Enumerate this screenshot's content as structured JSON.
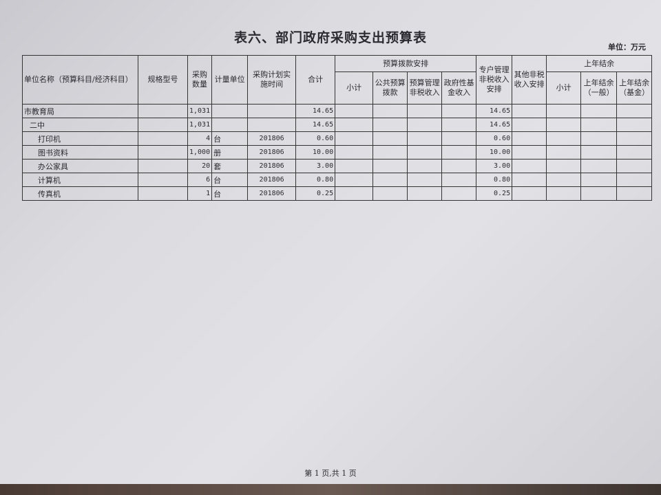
{
  "title": "表六、部门政府采购支出预算表",
  "unit": "单位：万元",
  "headers": {
    "name": "单位名称（预算科目/经济科目）",
    "spec": "规格型号",
    "qty": "采购数量",
    "unit": "计量单位",
    "time": "采购计划实施时间",
    "total": "合计",
    "budget_group": "预算拨款安排",
    "b_sub": "小计",
    "b_public": "公共预算拨款",
    "b_mgmt": "预算管理非税收入",
    "b_fund": "政府性基金收入",
    "special": "专户管理非税收入安排",
    "other": "其他非税收入安排",
    "prev_group": "上年结余",
    "p_sub": "小计",
    "p_general": "上年结余（一般）",
    "p_fund": "上年结余（基金）"
  },
  "rows": [
    {
      "name": "市教育局",
      "qty": "1,031",
      "unit": "",
      "time": "",
      "total": "14.65",
      "special": "14.65",
      "level": 0
    },
    {
      "name": "二中",
      "qty": "1,031",
      "unit": "",
      "time": "",
      "total": "14.65",
      "special": "14.65",
      "level": 1
    },
    {
      "name": "打印机",
      "qty": "4",
      "unit": "台",
      "time": "201806",
      "total": "0.60",
      "special": "0.60",
      "level": 2
    },
    {
      "name": "图书资料",
      "qty": "1,000",
      "unit": "册",
      "time": "201806",
      "total": "10.00",
      "special": "10.00",
      "level": 2
    },
    {
      "name": "办公家具",
      "qty": "20",
      "unit": "套",
      "time": "201806",
      "total": "3.00",
      "special": "3.00",
      "level": 2
    },
    {
      "name": "计算机",
      "qty": "6",
      "unit": "台",
      "time": "201806",
      "total": "0.80",
      "special": "0.80",
      "level": 2
    },
    {
      "name": "传真机",
      "qty": "1",
      "unit": "台",
      "time": "201806",
      "total": "0.25",
      "special": "0.25",
      "level": 2
    }
  ],
  "footer": "第 1 页,共 1 页"
}
